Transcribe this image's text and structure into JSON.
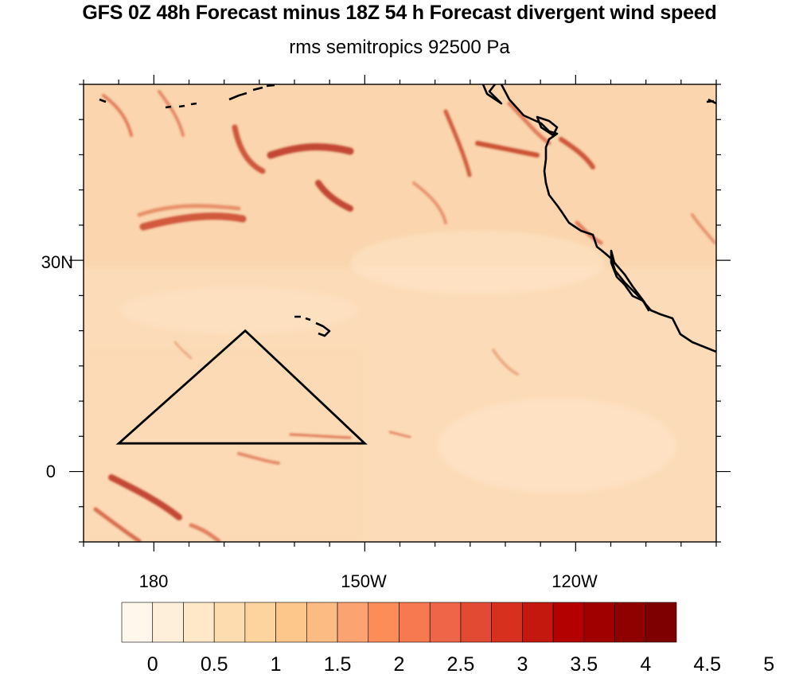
{
  "title": "GFS 0Z 48h Forecast minus 18Z 54 h Forecast divergent wind speed",
  "subtitle": "rms semitropics 92500 Pa",
  "map": {
    "projection": "cylindrical-equidistant",
    "lon_range": [
      170,
      260
    ],
    "lat_range": [
      -10,
      55
    ],
    "lat_labels": [
      {
        "lat": 30,
        "text": "30N"
      },
      {
        "lat": 0,
        "text": "0"
      }
    ],
    "lon_labels": [
      {
        "lon": 180,
        "text": "180"
      },
      {
        "lon": 210,
        "text": "150W"
      },
      {
        "lon": 240,
        "text": "120W"
      }
    ],
    "region_outline": {
      "shape": "triangle",
      "vertices_lonlat": [
        [
          175,
          4
        ],
        [
          210,
          4
        ],
        [
          193,
          20
        ]
      ],
      "color": "#000000"
    },
    "field_description": "divergent wind speed rms difference, mostly low values with streaks of higher values"
  },
  "colorbar": {
    "labels": [
      "0",
      "0.5",
      "1",
      "1.5",
      "2",
      "2.5",
      "3",
      "3.5",
      "4",
      "4.5",
      "5"
    ],
    "colors": [
      "#fff7ec",
      "#feefdb",
      "#fee8c8",
      "#fddcb0",
      "#fdd49e",
      "#fdc68b",
      "#fdbb84",
      "#fca372",
      "#fc8d59",
      "#f6794f",
      "#ef6548",
      "#e34a33",
      "#d7301f",
      "#c4180f",
      "#b30000",
      "#a00000",
      "#8f0000",
      "#7f0000"
    ]
  }
}
